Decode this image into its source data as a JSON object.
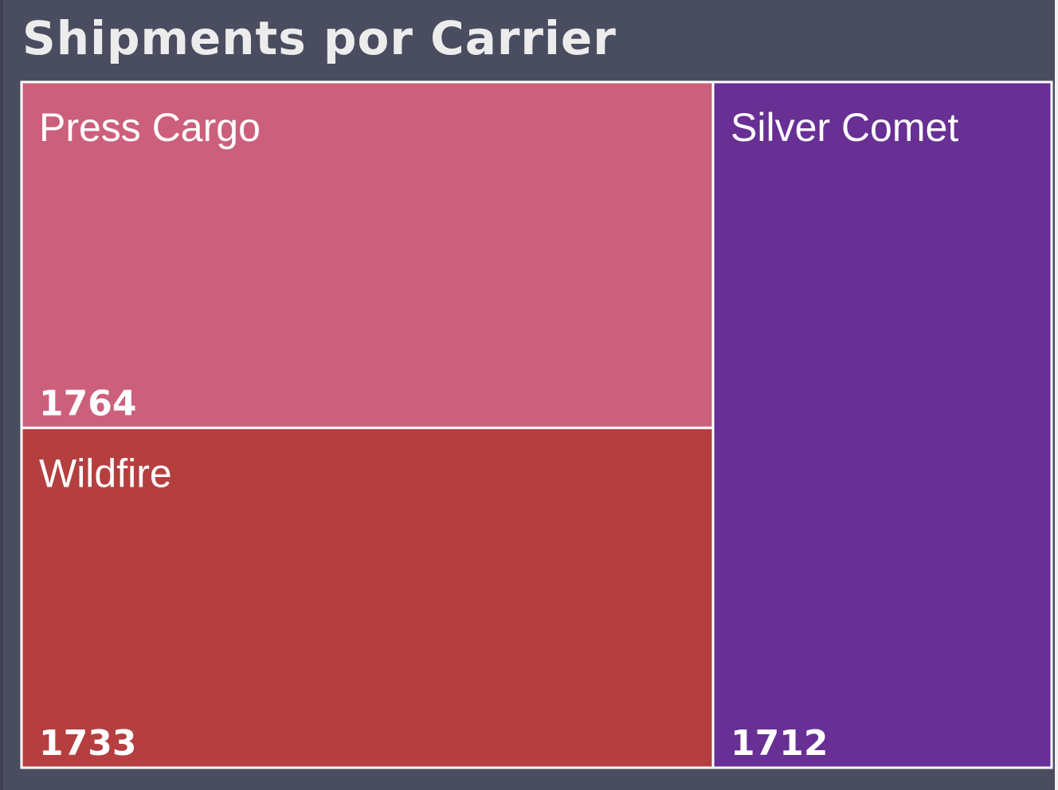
{
  "chart_data": {
    "type": "treemap",
    "title": "Shipments por Carrier",
    "items": [
      {
        "name": "Press Cargo",
        "value": 1764,
        "color": "#cc607c"
      },
      {
        "name": "Wildfire",
        "value": 1733,
        "color": "#b53f3f"
      },
      {
        "name": "Silver Comet",
        "value": 1712,
        "color": "#682f94"
      }
    ],
    "border_color": "#ffffff",
    "background_color": "#4a4c60"
  }
}
